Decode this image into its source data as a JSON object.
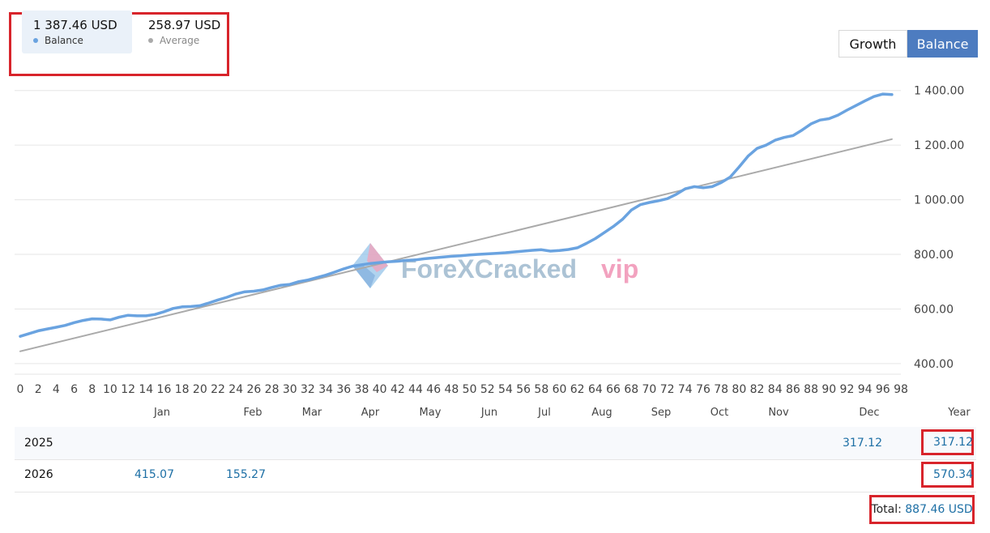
{
  "legend": {
    "balance_value": "1 387.46 USD",
    "balance_label": "Balance",
    "balance_color": "#6aa3e0",
    "average_value": "258.97 USD",
    "average_label": "Average",
    "average_color": "#aaaaaa"
  },
  "toggles": {
    "growth": "Growth",
    "balance": "Balance",
    "active": "Balance"
  },
  "watermark": {
    "part1": "ForeXCracked",
    "part2": "vip"
  },
  "chart_data": {
    "type": "line",
    "ylim": [
      370,
      1420
    ],
    "xlim": [
      0,
      98
    ],
    "y_ticks": [
      "400.00",
      "600.00",
      "800.00",
      "1 000.00",
      "1 200.00",
      "1 400.00"
    ],
    "x_ticks": [
      "0",
      "2",
      "4",
      "6",
      "8",
      "10",
      "12",
      "14",
      "16",
      "18",
      "20",
      "22",
      "24",
      "26",
      "28",
      "30",
      "32",
      "34",
      "36",
      "38",
      "40",
      "42",
      "44",
      "46",
      "48",
      "50",
      "52",
      "54",
      "56",
      "58",
      "60",
      "62",
      "64",
      "66",
      "68",
      "70",
      "72",
      "74",
      "76",
      "78",
      "80",
      "82",
      "84",
      "86",
      "88",
      "90",
      "92",
      "94",
      "96",
      "98"
    ],
    "grid": true,
    "series": [
      {
        "name": "Balance",
        "color": "#6aa3e0",
        "x": [
          0,
          1,
          2,
          3,
          4,
          5,
          6,
          7,
          8,
          9,
          10,
          11,
          12,
          13,
          14,
          15,
          16,
          17,
          18,
          19,
          20,
          21,
          22,
          23,
          24,
          25,
          26,
          27,
          28,
          29,
          30,
          31,
          32,
          33,
          34,
          35,
          36,
          37,
          38,
          39,
          40,
          41,
          42,
          43,
          44,
          45,
          46,
          47,
          48,
          49,
          50,
          51,
          52,
          53,
          54,
          55,
          56,
          57,
          58,
          59,
          60,
          61,
          62,
          63,
          64,
          65,
          66,
          67,
          68,
          69,
          70,
          71,
          72,
          73,
          74,
          75,
          76,
          77,
          78,
          79,
          80,
          81,
          82,
          83,
          84,
          85,
          86,
          87,
          88,
          89,
          90,
          91,
          92,
          93,
          94,
          95,
          96,
          97
        ],
        "y": [
          500,
          510,
          520,
          527,
          533,
          540,
          550,
          558,
          564,
          563,
          560,
          570,
          577,
          575,
          575,
          580,
          590,
          602,
          608,
          609,
          612,
          622,
          633,
          643,
          655,
          663,
          665,
          670,
          679,
          687,
          690,
          700,
          706,
          715,
          724,
          735,
          747,
          757,
          762,
          767,
          770,
          773,
          775,
          778,
          780,
          784,
          787,
          790,
          793,
          795,
          798,
          800,
          802,
          804,
          806,
          809,
          812,
          815,
          817,
          812,
          814,
          818,
          824,
          840,
          858,
          880,
          902,
          928,
          962,
          982,
          990,
          996,
          1004,
          1020,
          1040,
          1048,
          1044,
          1048,
          1063,
          1083,
          1120,
          1160,
          1188,
          1200,
          1218,
          1228,
          1235,
          1255,
          1278,
          1292,
          1297,
          1310,
          1328,
          1345,
          1362,
          1378,
          1387,
          1385
        ]
      },
      {
        "name": "Average",
        "color": "#aaaaaa",
        "x": [
          0,
          97
        ],
        "y": [
          445,
          1222
        ]
      }
    ]
  },
  "table": {
    "months": [
      "Jan",
      "Feb",
      "Mar",
      "Apr",
      "May",
      "Jun",
      "Jul",
      "Aug",
      "Sep",
      "Oct",
      "Nov",
      "Dec",
      "Year"
    ],
    "rows": [
      {
        "year": "2025",
        "dec": "317.12",
        "total": "317.12"
      },
      {
        "year": "2026",
        "jan": "415.07",
        "feb": "155.27",
        "total": "570.34"
      }
    ],
    "total_label": "Total:",
    "total_value": "887.46 USD"
  }
}
